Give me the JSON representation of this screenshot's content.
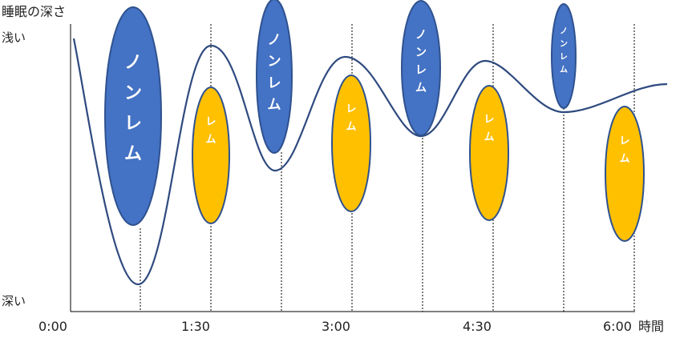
{
  "labels": {
    "y_title": "睡眠の深さ",
    "shallow": "浅い",
    "deep": "深い",
    "x_unit": "時間"
  },
  "ticks": [
    "0:00",
    "1:30",
    "3:00",
    "4:30",
    "6:00"
  ],
  "nonrem_text": "ノンレム",
  "rem_text": "レム",
  "colors": {
    "nonrem_fill": "#4472C4",
    "nonrem_stroke": "#2F528F",
    "rem_fill": "#FFC000",
    "rem_stroke": "#2F528F",
    "curve": "#2F4A7F"
  }
}
